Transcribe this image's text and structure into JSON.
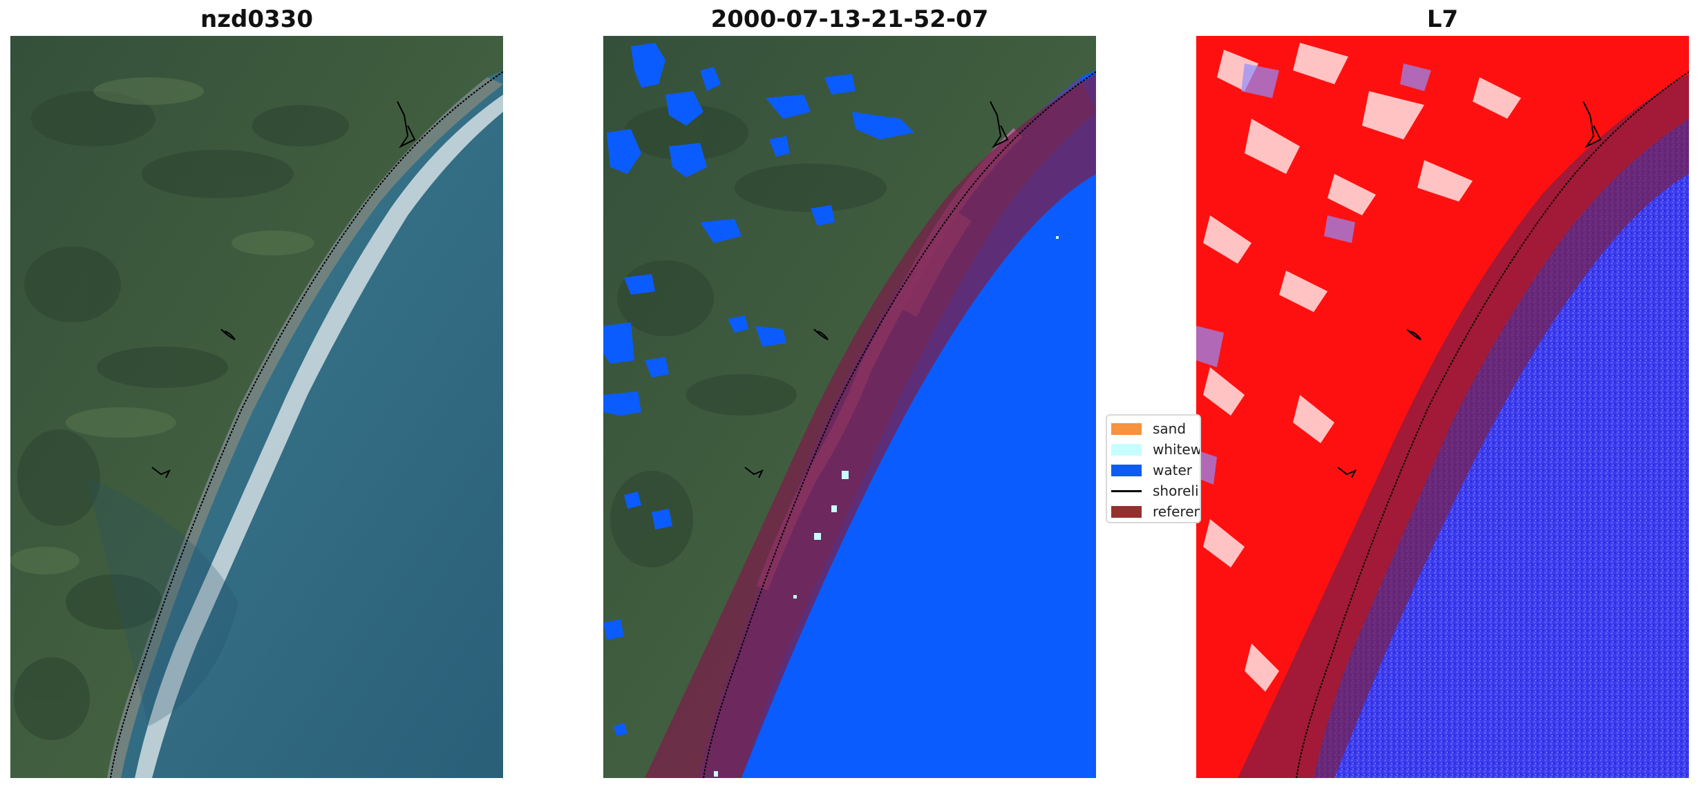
{
  "panels": [
    {
      "title": "nzd0330"
    },
    {
      "title": "2000-07-13-21-52-07"
    },
    {
      "title": "L7"
    }
  ],
  "legend": {
    "placement": "center, between middle and right panels",
    "items": [
      {
        "label": "sand",
        "color": "#f7923e",
        "kind": "patch"
      },
      {
        "label": "whitewater",
        "color": "#c8fdfd",
        "kind": "patch"
      },
      {
        "label": "water",
        "color": "#0f5cf0",
        "kind": "patch"
      },
      {
        "label": "shoreline",
        "color": "#000000",
        "kind": "line"
      },
      {
        "label": "reference",
        "color": "#94302e",
        "kind": "patch"
      }
    ]
  },
  "colors": {
    "land": "#3f5a3a",
    "ocean": "#2c6a84",
    "classified_water": "#0a5cff",
    "buffer_overlay": "#7a1f49",
    "index_land": "#ff1a1a",
    "index_water": "#3a3af0"
  }
}
